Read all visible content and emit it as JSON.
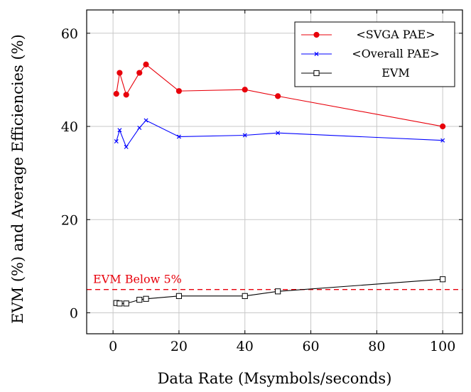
{
  "chart_data": {
    "type": "line",
    "xlabel": "Data Rate (Msymbols/seconds)",
    "ylabel": "EVM (%) and Average Efficiencies (%)",
    "xlim": [
      -8,
      106
    ],
    "ylim": [
      -4.5,
      65
    ],
    "xticks": [
      0,
      20,
      40,
      60,
      80,
      100
    ],
    "yticks": [
      0,
      20,
      40,
      60
    ],
    "grid": true,
    "legend_position": "top-right",
    "series": [
      {
        "name": "<SVGA PAE>",
        "color": "#e8000b",
        "marker": "circle",
        "x": [
          1,
          2,
          4,
          8,
          10,
          20,
          40,
          50,
          100
        ],
        "y": [
          47.0,
          51.5,
          46.8,
          51.5,
          53.3,
          47.6,
          47.9,
          46.5,
          40.0
        ]
      },
      {
        "name": "<Overall PAE>",
        "color": "#0000ff",
        "marker": "x",
        "x": [
          1,
          2,
          4,
          8,
          10,
          20,
          40,
          50,
          100
        ],
        "y": [
          36.8,
          39.2,
          35.6,
          39.7,
          41.3,
          37.8,
          38.1,
          38.6,
          37.0
        ]
      },
      {
        "name": "EVM",
        "color": "#000000",
        "marker": "square",
        "x": [
          1,
          2,
          4,
          8,
          10,
          20,
          40,
          50,
          100
        ],
        "y": [
          2.1,
          2.0,
          2.0,
          2.8,
          3.0,
          3.6,
          3.6,
          4.6,
          7.2
        ]
      }
    ],
    "threshold": {
      "y": 5,
      "label": "EVM Below 5%",
      "color": "#e8000b",
      "style": "dashed"
    }
  }
}
